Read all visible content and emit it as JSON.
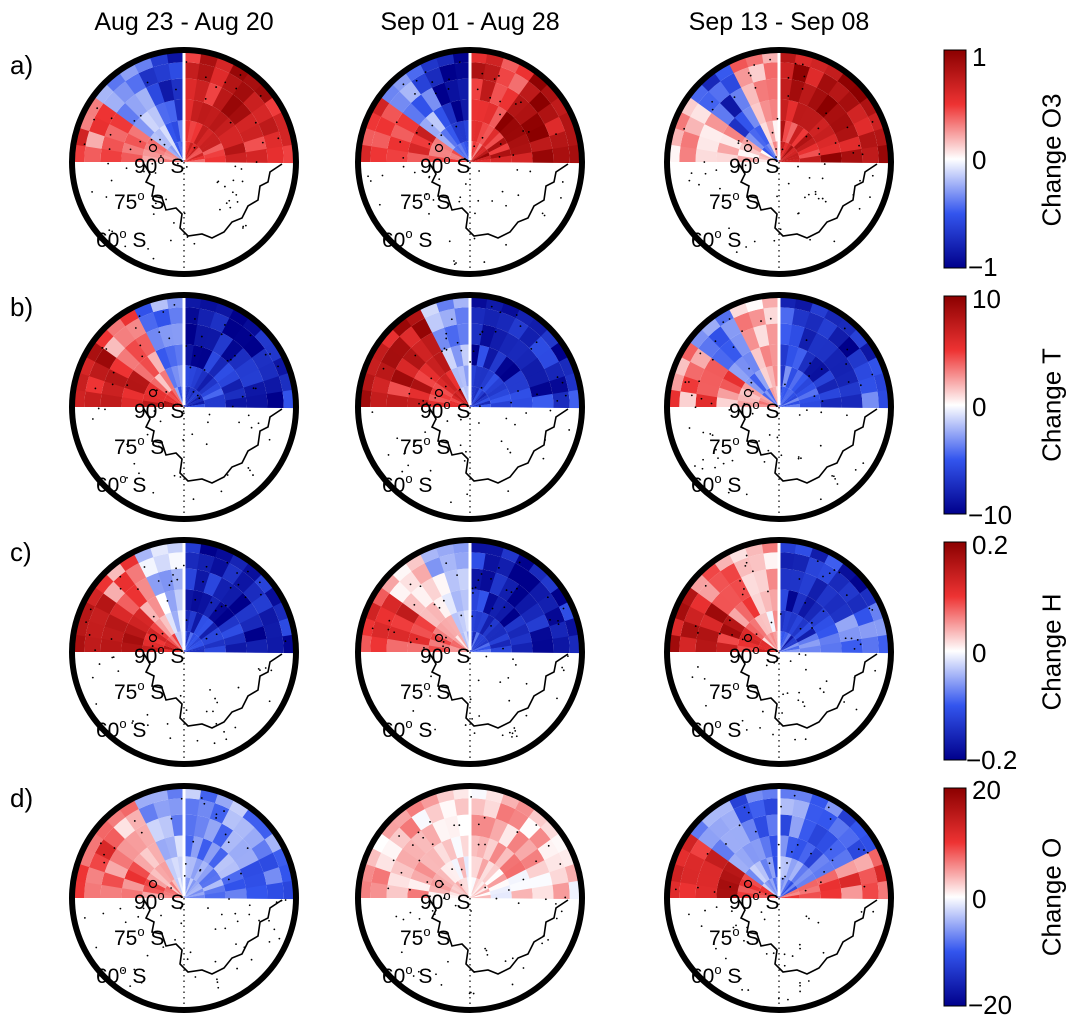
{
  "columns": [
    "Aug 23 - Aug 20",
    "Sep 01 - Aug 28",
    "Sep 13 - Sep 08"
  ],
  "rows": [
    {
      "label": "a)",
      "quantity": "Change O3",
      "max": "1",
      "zero": "0",
      "min": "−1"
    },
    {
      "label": "b)",
      "quantity": "Change T",
      "max": "10",
      "zero": "0",
      "min": "−10"
    },
    {
      "label": "c)",
      "quantity": "Change H",
      "max": "0.2",
      "zero": "0",
      "min": "−0.2"
    },
    {
      "label": "d)",
      "quantity": "Change O",
      "max": "20",
      "zero": "0",
      "min": "−20"
    }
  ],
  "latitude_labels": {
    "lat90": {
      "num": "90",
      "deg": "o",
      "hemi": "S"
    },
    "lat75": {
      "num": "75",
      "deg": "o",
      "hemi": "S"
    },
    "lat60": {
      "num": "60",
      "deg": "o",
      "hemi": "S"
    }
  },
  "colormap": {
    "negative": "#00008b",
    "negative_mid": "#3355ee",
    "zero": "#ffffff",
    "positive_mid": "#ee3333",
    "positive": "#8b0000",
    "coastline": "#000000",
    "frame": "#000000"
  },
  "field_levels": [
    [
      [
        0.5,
        -0.3,
        -0.8,
        0.9,
        0.85,
        0.8
      ],
      [
        0.6,
        -0.5,
        -1,
        0.7,
        1,
        1
      ],
      [
        0.2,
        -0.7,
        0.3,
        0.9,
        1,
        0.95
      ]
    ],
    [
      [
        0.9,
        0.5,
        -0.5,
        -1,
        -1,
        -0.9
      ],
      [
        0.8,
        0.95,
        -0.3,
        -1,
        -1,
        -0.9
      ],
      [
        0.4,
        -0.5,
        0.2,
        -0.8,
        -1,
        -0.7
      ]
    ],
    [
      [
        0.9,
        0.5,
        -0.2,
        -1,
        -1,
        -0.9
      ],
      [
        0.6,
        0.2,
        -0.2,
        -1,
        -1,
        -0.9
      ],
      [
        0.9,
        0.4,
        0.2,
        -0.9,
        -1,
        -0.5
      ]
    ],
    [
      [
        0.5,
        0.3,
        -0.3,
        -0.4,
        -0.4,
        -0.5
      ],
      [
        0.2,
        0.2,
        0.1,
        0.2,
        0.2,
        0.1
      ],
      [
        0.8,
        -0.3,
        -0.6,
        -0.5,
        -0.6,
        0.5
      ]
    ]
  ]
}
